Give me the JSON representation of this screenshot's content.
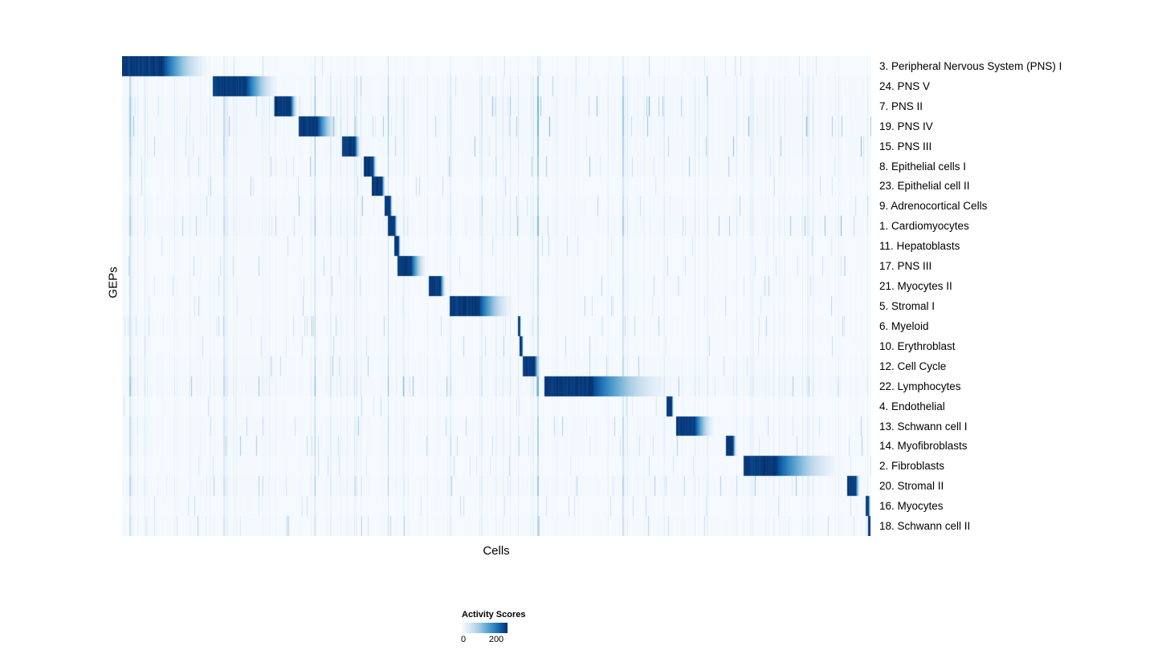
{
  "chart_data": {
    "type": "heatmap",
    "title": "",
    "xlabel": "Cells",
    "ylabel": "GEPs",
    "legend_position": "bottom",
    "grid": false,
    "colormap": "Blues",
    "colormap_stops": [
      [
        0.0,
        "#f7fbff"
      ],
      [
        0.13,
        "#deebf7"
      ],
      [
        0.26,
        "#c6dbef"
      ],
      [
        0.39,
        "#9ecae1"
      ],
      [
        0.52,
        "#6baed6"
      ],
      [
        0.65,
        "#4292c6"
      ],
      [
        0.78,
        "#2171b5"
      ],
      [
        0.9,
        "#08519c"
      ],
      [
        1.0,
        "#08306b"
      ]
    ],
    "colorbar": {
      "title": "Activity Scores",
      "min": 0,
      "max": 200,
      "tick_labels": [
        "0",
        "200"
      ]
    },
    "rows": [
      {
        "label": "3. Peripheral Nervous System (PNS) I",
        "block_start": 0.0,
        "block_core": 0.055,
        "block_fade": 0.065
      },
      {
        "label": "24. PNS V",
        "block_start": 0.121,
        "block_core": 0.045,
        "block_fade": 0.045
      },
      {
        "label": "7. PNS II",
        "block_start": 0.203,
        "block_core": 0.022,
        "block_fade": 0.01
      },
      {
        "label": "19. PNS IV",
        "block_start": 0.236,
        "block_core": 0.025,
        "block_fade": 0.03
      },
      {
        "label": "15. PNS III",
        "block_start": 0.293,
        "block_core": 0.018,
        "block_fade": 0.008
      },
      {
        "label": "8. Epithelial cells I",
        "block_start": 0.322,
        "block_core": 0.013,
        "block_fade": 0.005
      },
      {
        "label": "23. Epithelial cell II",
        "block_start": 0.333,
        "block_core": 0.014,
        "block_fade": 0.005
      },
      {
        "label": "9. Adrenocortical Cells",
        "block_start": 0.35,
        "block_core": 0.008,
        "block_fade": 0.003
      },
      {
        "label": "1. Cardiomyocytes",
        "block_start": 0.355,
        "block_core": 0.009,
        "block_fade": 0.004
      },
      {
        "label": "11. Hepatoblasts",
        "block_start": 0.363,
        "block_core": 0.006,
        "block_fade": 0.003
      },
      {
        "label": "17. PNS III",
        "block_start": 0.368,
        "block_core": 0.018,
        "block_fade": 0.022
      },
      {
        "label": "21. Myocytes II",
        "block_start": 0.409,
        "block_core": 0.016,
        "block_fade": 0.008
      },
      {
        "label": "5. Stromal I",
        "block_start": 0.437,
        "block_core": 0.04,
        "block_fade": 0.048
      },
      {
        "label": "6. Myeloid",
        "block_start": 0.528,
        "block_core": 0.003,
        "block_fade": 0.002
      },
      {
        "label": "10. Erythroblast",
        "block_start": 0.531,
        "block_core": 0.003,
        "block_fade": 0.002
      },
      {
        "label": "12. Cell Cycle",
        "block_start": 0.535,
        "block_core": 0.016,
        "block_fade": 0.008
      },
      {
        "label": "22. Lymphocytes",
        "block_start": 0.564,
        "block_core": 0.065,
        "block_fade": 0.11
      },
      {
        "label": "4. Endothelial",
        "block_start": 0.727,
        "block_core": 0.007,
        "block_fade": 0.003
      },
      {
        "label": "13. Schwann cell I",
        "block_start": 0.74,
        "block_core": 0.025,
        "block_fade": 0.028
      },
      {
        "label": "14. Myofibroblasts",
        "block_start": 0.806,
        "block_core": 0.01,
        "block_fade": 0.005
      },
      {
        "label": "2. Fibroblasts",
        "block_start": 0.83,
        "block_core": 0.045,
        "block_fade": 0.09
      },
      {
        "label": "20. Stromal II",
        "block_start": 0.968,
        "block_core": 0.012,
        "block_fade": 0.006
      },
      {
        "label": "16. Myocytes",
        "block_start": 0.993,
        "block_core": 0.004,
        "block_fade": 0.003
      },
      {
        "label": "18. Schwann cell II",
        "block_start": 0.996,
        "block_core": 0.004,
        "block_fade": 0.0
      }
    ]
  }
}
